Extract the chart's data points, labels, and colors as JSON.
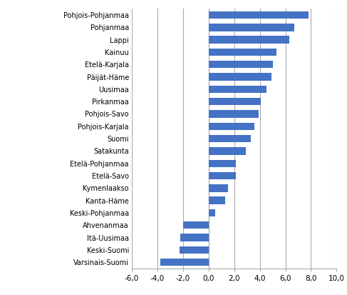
{
  "categories": [
    "Varsinais-Suomi",
    "Keski-Suomi",
    "Itä-Uusimaa",
    "Ahvenanmaa",
    "Keski-Pohjanmaa",
    "Kanta-Häme",
    "Kymenlaakso",
    "Etelä-Savo",
    "Etelä-Pohjanmaa",
    "Satakunta",
    "Suomi",
    "Pohjois-Karjala",
    "Pohjois-Savo",
    "Pirkanmaa",
    "Uusimaa",
    "Päijät-Häme",
    "Etelä-Karjala",
    "Kainuu",
    "Lappi",
    "Pohjanmaa",
    "Pohjois-Pohjanmaa"
  ],
  "values": [
    -3.8,
    -2.3,
    -2.2,
    -2.0,
    0.5,
    1.3,
    1.5,
    2.1,
    2.1,
    2.9,
    3.3,
    3.6,
    3.9,
    4.1,
    4.5,
    4.9,
    5.0,
    5.3,
    6.3,
    6.7,
    7.8
  ],
  "bar_color": "#4472C4",
  "xlim": [
    -6.0,
    10.0
  ],
  "xticks": [
    -6.0,
    -4.0,
    -2.0,
    0.0,
    2.0,
    4.0,
    6.0,
    8.0,
    10.0
  ],
  "xtick_labels": [
    "-6,0",
    "-4,0",
    "-2,0",
    "0,0",
    "2,0",
    "4,0",
    "6,0",
    "8,0",
    "10,0"
  ],
  "grid_color": "#AAAAAA",
  "background_color": "#FFFFFF",
  "bar_height": 0.6,
  "label_fontsize": 7.0,
  "tick_fontsize": 7.5
}
